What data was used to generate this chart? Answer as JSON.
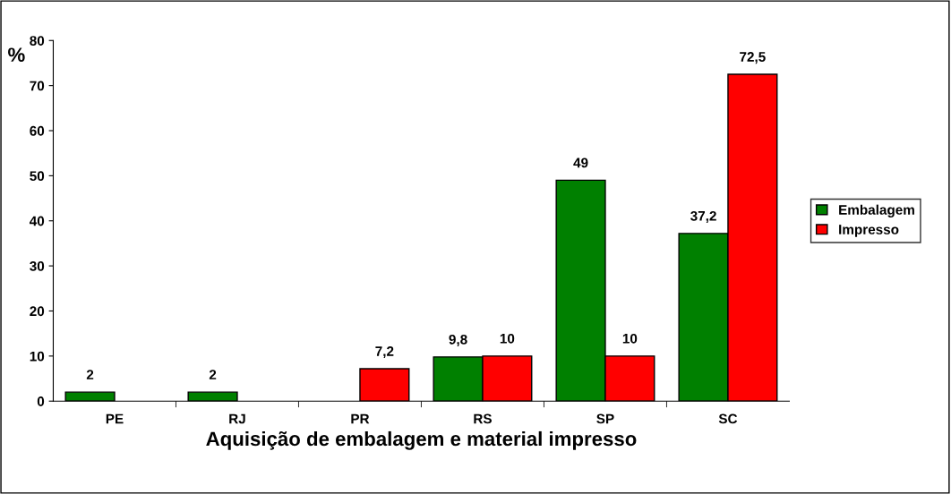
{
  "chart_data": {
    "type": "bar",
    "xlabel": "Aquisição de embalagem e material impresso",
    "ylabel": "%",
    "categories": [
      "PE",
      "RJ",
      "PR",
      "RS",
      "SP",
      "SC"
    ],
    "series": [
      {
        "name": "Embalagem",
        "color": "#008000",
        "values": [
          2,
          2,
          null,
          9.8,
          49,
          37.2
        ],
        "value_labels": [
          "2",
          "2",
          null,
          "9,8",
          "49",
          "37,2"
        ]
      },
      {
        "name": "Impresso",
        "color": "#ff0000",
        "values": [
          null,
          null,
          7.2,
          10,
          10,
          72.5
        ],
        "value_labels": [
          null,
          null,
          "7,2",
          "10",
          "10",
          "72,5"
        ]
      }
    ],
    "ylim": [
      0,
      80
    ],
    "yticks": [
      0,
      10,
      20,
      30,
      40,
      50,
      60,
      70,
      80
    ],
    "grid": false,
    "legend": "right"
  }
}
